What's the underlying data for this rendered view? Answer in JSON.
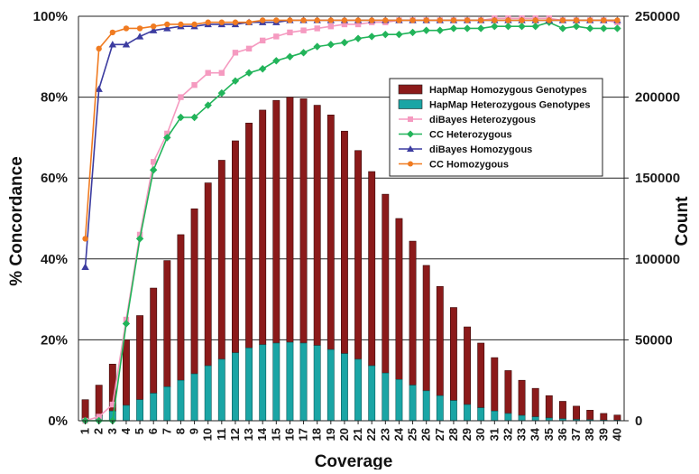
{
  "chart_data": {
    "type": "bar",
    "title": "",
    "xlabel": "Coverage",
    "ylabel_left": "% Concordance",
    "ylabel_right": "Count",
    "categories": [
      "1",
      "2",
      "3",
      "4",
      "5",
      "6",
      "7",
      "8",
      "9",
      "10",
      "11",
      "12",
      "13",
      "14",
      "15",
      "16",
      "17",
      "18",
      "19",
      "20",
      "21",
      "22",
      "23",
      "24",
      "25",
      "26",
      "27",
      "28",
      "29",
      "30",
      "31",
      "32",
      "33",
      "34",
      "35",
      "36",
      "37",
      "38",
      "39",
      "40"
    ],
    "y_left": {
      "range": [
        0,
        100
      ],
      "ticks": [
        0,
        20,
        40,
        60,
        80,
        100
      ],
      "tick_labels": [
        "0%",
        "20%",
        "40%",
        "60%",
        "80%",
        "100%"
      ]
    },
    "y_right": {
      "range": [
        0,
        250000
      ],
      "ticks": [
        0,
        50000,
        100000,
        150000,
        200000,
        250000
      ],
      "tick_labels": [
        "0",
        "50000",
        "100000",
        "150000",
        "200000",
        "250000"
      ]
    },
    "grid": true,
    "legend_placement": "upper-right inside plot",
    "bar_series": [
      {
        "name": "HapMap Homozygous Genotypes",
        "color": "#8b1a1a",
        "stacked_on": "HapMap Heterozygous Genotypes",
        "total_values": [
          13000,
          22000,
          35000,
          50000,
          65000,
          82000,
          99000,
          115000,
          131000,
          147000,
          161000,
          173000,
          184000,
          192000,
          198000,
          200000,
          199000,
          195000,
          189000,
          179000,
          167000,
          154000,
          140000,
          125000,
          111000,
          96000,
          83000,
          70000,
          58000,
          48000,
          39000,
          31000,
          25000,
          20000,
          15500,
          12000,
          9000,
          6500,
          4500,
          3500
        ]
      },
      {
        "name": "HapMap Heterozygous Genotypes",
        "color": "#1aa5a5",
        "values": [
          1000,
          3000,
          6000,
          9500,
          13000,
          17000,
          21000,
          25000,
          29000,
          34000,
          38000,
          42000,
          45000,
          47000,
          48000,
          48500,
          48000,
          46500,
          44000,
          41500,
          38000,
          34000,
          29500,
          25500,
          22000,
          18500,
          15500,
          12500,
          10000,
          8000,
          6000,
          4500,
          3300,
          2400,
          1700,
          1200,
          800,
          600,
          400,
          300
        ]
      }
    ],
    "line_series": [
      {
        "name": "diBayes Heterozygous",
        "color": "#f59ac0",
        "marker": "square",
        "values": [
          0,
          1,
          4,
          25,
          46,
          64,
          71,
          80,
          83,
          86,
          86,
          91,
          92,
          94,
          95,
          96,
          96.5,
          97,
          97.5,
          98,
          98,
          98.5,
          98.5,
          99,
          99,
          99,
          99,
          99,
          99,
          99,
          99.5,
          99.5,
          99.5,
          99.5,
          99.5,
          99,
          99,
          99,
          99,
          98.5
        ]
      },
      {
        "name": "CC Heterozygous",
        "color": "#22b45a",
        "marker": "diamond",
        "values": [
          0,
          0,
          0,
          24,
          45,
          62,
          70,
          75,
          75,
          78,
          81,
          84,
          86,
          87,
          89,
          90,
          91,
          92.5,
          93,
          93.5,
          94.5,
          95,
          95.5,
          95.5,
          96,
          96.5,
          96.5,
          97,
          97,
          97,
          97.5,
          97.5,
          97.5,
          97.5,
          98.5,
          97,
          97.5,
          97,
          97,
          97
        ]
      },
      {
        "name": "diBayes Homozygous",
        "color": "#3c3ca0",
        "marker": "triangle",
        "values": [
          38,
          82,
          93,
          93,
          95,
          96.5,
          97,
          97.5,
          97.5,
          98,
          98,
          98,
          98.5,
          98.5,
          98.5,
          99,
          99,
          99,
          99,
          99,
          99,
          99,
          99,
          99,
          99,
          99,
          99,
          99,
          99,
          99,
          99,
          99,
          99,
          99,
          99,
          99,
          99,
          99,
          99,
          99
        ]
      },
      {
        "name": "CC Homozygous",
        "color": "#f07b21",
        "marker": "circle",
        "values": [
          45,
          92,
          96,
          97,
          97,
          97.5,
          98,
          98,
          98,
          98.5,
          98.5,
          98.5,
          98.5,
          99,
          99,
          99,
          99,
          99,
          99,
          99,
          99,
          99,
          99,
          99,
          99,
          99,
          99,
          99,
          99,
          99,
          99,
          99,
          99,
          99,
          99,
          99,
          99,
          99,
          99,
          99
        ]
      }
    ],
    "legend": [
      {
        "label": "HapMap Homozygous Genotypes",
        "kind": "bar",
        "color": "#8b1a1a"
      },
      {
        "label": "HapMap Heterozygous Genotypes",
        "kind": "bar",
        "color": "#1aa5a5"
      },
      {
        "label": "diBayes Heterozygous",
        "kind": "line",
        "marker": "square",
        "color": "#f59ac0"
      },
      {
        "label": "CC Heterozygous",
        "kind": "line",
        "marker": "diamond",
        "color": "#22b45a"
      },
      {
        "label": "diBayes Homozygous",
        "kind": "line",
        "marker": "triangle",
        "color": "#3c3ca0"
      },
      {
        "label": "CC Homozygous",
        "kind": "line",
        "marker": "circle",
        "color": "#f07b21"
      }
    ]
  }
}
